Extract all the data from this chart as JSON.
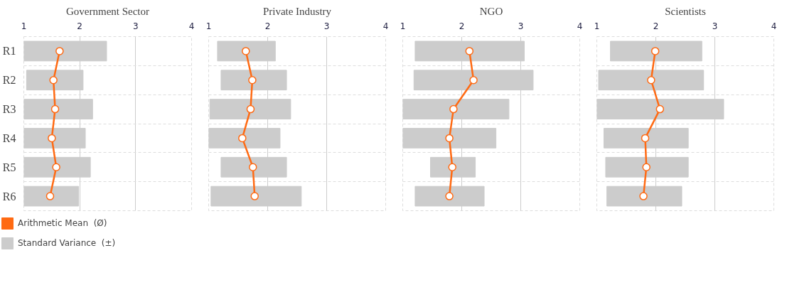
{
  "chart_data": [
    {
      "type": "bar",
      "orientation": "horizontal",
      "title": "Government Sector",
      "categories": [
        "R1",
        "R2",
        "R3",
        "R4",
        "R5",
        "R6"
      ],
      "xlim": [
        1,
        4
      ],
      "xticks": [
        1,
        2,
        3,
        4
      ],
      "grid": true,
      "legend": "bottom left",
      "series": [
        {
          "name": "Standard Variance  (±)",
          "color": "#cccccc",
          "base": [
            1.0,
            1.05,
            1.0,
            1.0,
            1.0,
            1.0
          ],
          "values": [
            1.48,
            1.01,
            1.23,
            1.1,
            1.19,
            0.98
          ]
        },
        {
          "name": "Arithmetic Mean  (Ø)",
          "type": "line",
          "marker": "circle",
          "color": "#ff6a13",
          "values": [
            1.64,
            1.53,
            1.56,
            1.5,
            1.58,
            1.47
          ]
        }
      ]
    },
    {
      "type": "bar",
      "orientation": "horizontal",
      "title": "Private Industry",
      "categories": [
        null,
        null,
        null,
        null,
        null,
        null
      ],
      "xlim": [
        1,
        4
      ],
      "xticks": [
        1,
        2,
        3,
        4
      ],
      "grid": true,
      "tick_labels": "x",
      "series": [
        {
          "color": "#cccccc",
          "base": [
            1.15,
            1.21,
            1.02,
            1.0,
            1.21,
            1.04
          ],
          "values": [
            0.98,
            1.11,
            1.37,
            1.21,
            1.11,
            1.53
          ]
        },
        {
          "type": "line",
          "marker": "circle",
          "color": "#ff6a13",
          "values": [
            1.63,
            1.74,
            1.71,
            1.57,
            1.75,
            1.78
          ]
        }
      ]
    },
    {
      "type": "bar",
      "orientation": "horizontal",
      "title": "NGO",
      "categories": [
        null,
        null,
        null,
        null,
        null,
        null
      ],
      "xlim": [
        1,
        4
      ],
      "xticks": [
        1,
        2,
        3,
        4
      ],
      "grid": true,
      "tick_labels": "x",
      "series": [
        {
          "color": "#cccccc",
          "base": [
            1.21,
            1.19,
            1.0,
            1.0,
            1.47,
            1.21
          ],
          "values": [
            1.85,
            2.02,
            1.8,
            1.58,
            0.76,
            1.17
          ]
        },
        {
          "type": "line",
          "marker": "circle",
          "color": "#ff6a13",
          "values": [
            2.13,
            2.2,
            1.86,
            1.79,
            1.84,
            1.79
          ]
        }
      ]
    },
    {
      "type": "bar",
      "orientation": "horizontal",
      "title": "Scientists",
      "categories": [
        null,
        null,
        null,
        null,
        null,
        null
      ],
      "xlim": [
        1,
        4
      ],
      "xticks": [
        1,
        2,
        3,
        4
      ],
      "grid": true,
      "tick_labels": "x",
      "series": [
        {
          "color": "#cccccc",
          "base": [
            1.23,
            1.03,
            1.0,
            1.12,
            1.15,
            1.17
          ],
          "values": [
            1.55,
            1.78,
            2.15,
            1.43,
            1.4,
            1.27
          ]
        },
        {
          "type": "line",
          "marker": "circle",
          "color": "#ff6a13",
          "values": [
            1.99,
            1.92,
            2.07,
            1.82,
            1.84,
            1.79
          ]
        }
      ]
    }
  ]
}
